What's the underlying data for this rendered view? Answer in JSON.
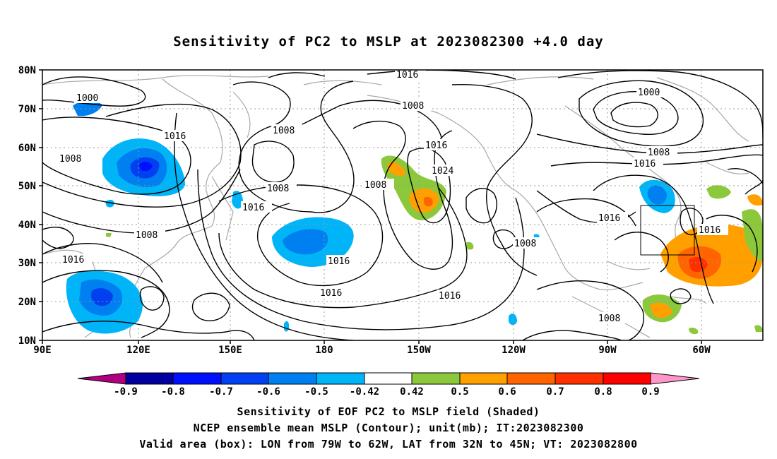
{
  "title": "Sensitivity of PC2 to MSLP at 2023082300 +4.0 day",
  "lat_labels": [
    "80N",
    "70N",
    "60N",
    "50N",
    "40N",
    "30N",
    "20N",
    "10N"
  ],
  "lon_labels": [
    "90E",
    "120E",
    "150E",
    "180",
    "150W",
    "120W",
    "90W",
    "60W"
  ],
  "contour_labels": [
    "1000",
    "1016",
    "1008",
    "1016",
    "1008",
    "1016",
    "1008",
    "1008",
    "1016",
    "1024",
    "1016",
    "1008",
    "1000",
    "1008",
    "1016",
    "1016",
    "1016",
    "1016",
    "1008",
    "1016",
    "1016",
    "1008",
    "1008"
  ],
  "colorbar": {
    "labels": [
      "-0.9",
      "-0.8",
      "-0.7",
      "-0.6",
      "-0.5",
      "-0.42",
      "0.42",
      "0.5",
      "0.6",
      "0.7",
      "0.8",
      "0.9"
    ],
    "colors": [
      "#b00080",
      "#0000a0",
      "#0010ff",
      "#0040f0",
      "#0080f0",
      "#00b4f8",
      "#ffffff",
      "#8cc83c",
      "#ffa000",
      "#ff6400",
      "#ff3000",
      "#ff0000",
      "#ff96c8"
    ]
  },
  "valid_box": {
    "lon_from": "79W",
    "lon_to": "62W",
    "lat_from": "32N",
    "lat_to": "45N"
  },
  "captions": [
    "Sensitivity of EOF PC2 to MSLP field (Shaded)",
    "NCEP ensemble mean MSLP (Contour); unit(mb); IT:2023082300",
    "Valid area (box): LON from 79W to 62W, LAT from 32N to 45N; VT: 2023082800"
  ]
}
